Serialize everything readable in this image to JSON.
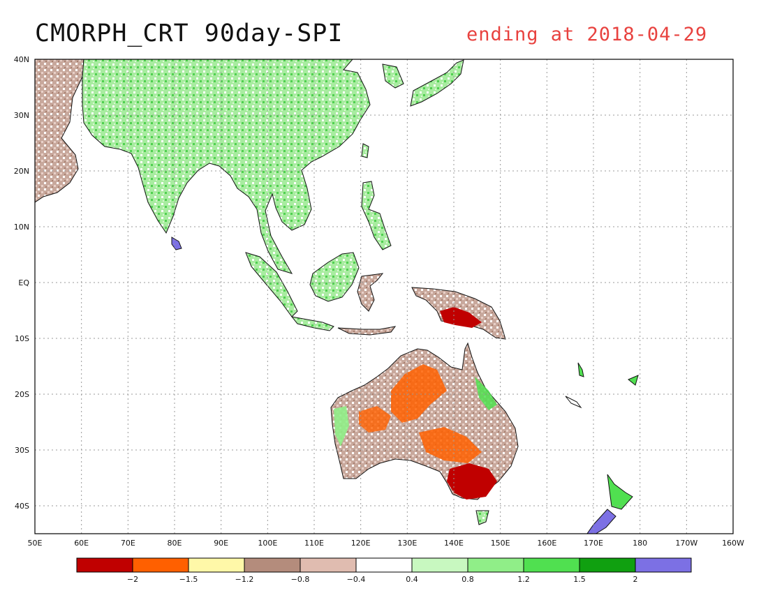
{
  "title": {
    "left": "CMORPH_CRT 90day-SPI",
    "right": "ending at 2018-04-29",
    "right_color": "#e8423f"
  },
  "chart_data": {
    "type": "heatmap",
    "map_extent": {
      "lon": [
        50,
        200
      ],
      "lat": [
        -45,
        40
      ]
    },
    "lat_ticks": [
      {
        "value": 40,
        "label": "40N"
      },
      {
        "value": 30,
        "label": "30N"
      },
      {
        "value": 20,
        "label": "20N"
      },
      {
        "value": 10,
        "label": "10N"
      },
      {
        "value": 0,
        "label": "EQ"
      },
      {
        "value": -10,
        "label": "10S"
      },
      {
        "value": -20,
        "label": "20S"
      },
      {
        "value": -30,
        "label": "30S"
      },
      {
        "value": -40,
        "label": "40S"
      }
    ],
    "lon_ticks": [
      {
        "value": 50,
        "label": "50E"
      },
      {
        "value": 60,
        "label": "60E"
      },
      {
        "value": 70,
        "label": "70E"
      },
      {
        "value": 80,
        "label": "80E"
      },
      {
        "value": 90,
        "label": "90E"
      },
      {
        "value": 100,
        "label": "100E"
      },
      {
        "value": 110,
        "label": "110E"
      },
      {
        "value": 120,
        "label": "120E"
      },
      {
        "value": 130,
        "label": "130E"
      },
      {
        "value": 140,
        "label": "140E"
      },
      {
        "value": 150,
        "label": "150E"
      },
      {
        "value": 160,
        "label": "160E"
      },
      {
        "value": 170,
        "label": "170E"
      },
      {
        "value": 180,
        "label": "180"
      },
      {
        "value": 190,
        "label": "170W"
      },
      {
        "value": 200,
        "label": "160W"
      }
    ],
    "grid": true,
    "colorbar": {
      "colors": [
        "#c00000",
        "#ff6000",
        "#fff8a8",
        "#b48c7c",
        "#e0bcb0",
        "#ffffff",
        "#c8f8c0",
        "#90ee88",
        "#50e050",
        "#10a010",
        "#7c70e4"
      ],
      "labels": [
        "-2",
        "-1.5",
        "-1.2",
        "-0.8",
        "-0.4",
        "0.4",
        "0.8",
        "1.2",
        "1.5",
        "2"
      ]
    }
  }
}
